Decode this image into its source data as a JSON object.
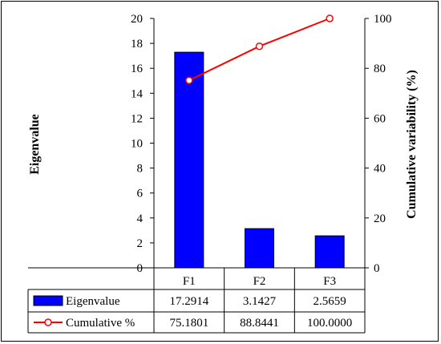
{
  "chart_data": {
    "type": "bar",
    "categories": [
      "F1",
      "F2",
      "F3"
    ],
    "series": [
      {
        "name": "Eigenvalue",
        "type": "bar",
        "axis": "left",
        "color": "#0000ff",
        "values": [
          17.2914,
          3.1427,
          2.5659
        ],
        "labels": [
          "17.2914",
          "3.1427",
          "2.5659"
        ]
      },
      {
        "name": "Cumulative %",
        "type": "line",
        "axis": "right",
        "color": "#ff0000",
        "values": [
          75.1801,
          88.8441,
          100.0
        ],
        "labels": [
          "75.1801",
          "88.8441",
          "100.0000"
        ]
      }
    ],
    "ylabel": "Eigenvalue",
    "y2label": "Cumulative variability (%)",
    "ylim": [
      0,
      20
    ],
    "y2lim": [
      0,
      100
    ],
    "yticks": [
      "0",
      "2",
      "4",
      "6",
      "8",
      "10",
      "12",
      "14",
      "16",
      "18",
      "20"
    ],
    "y2ticks": [
      "0",
      "20",
      "40",
      "60",
      "80",
      "100"
    ],
    "grid": false,
    "legend": "data-table"
  }
}
